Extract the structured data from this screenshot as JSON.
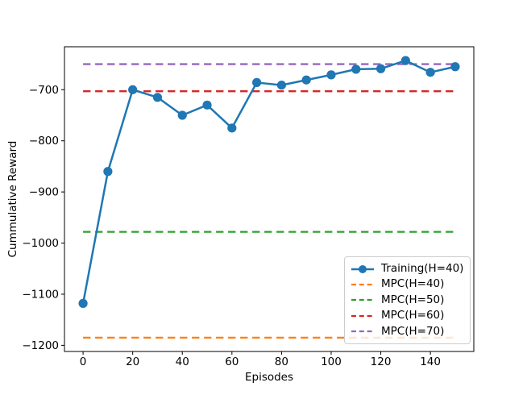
{
  "chart_data": {
    "type": "line",
    "title": "",
    "xlabel": "Episodes",
    "ylabel": "Cummulative Reward",
    "xlim": [
      -7.5,
      157.5
    ],
    "ylim": [
      -1212,
      -616
    ],
    "x_ticks": [
      0,
      20,
      40,
      60,
      80,
      100,
      120,
      140
    ],
    "y_ticks": [
      -700,
      -800,
      -900,
      -1000,
      -1100,
      -1200
    ],
    "grid": false,
    "legend_position": "lower right",
    "background_color": "#ffffff",
    "axis_color": "#000000",
    "x": [
      0,
      10,
      20,
      30,
      40,
      50,
      60,
      70,
      80,
      90,
      100,
      110,
      120,
      130,
      140,
      150
    ],
    "series": [
      {
        "name": "Training(H=40)",
        "style": "solid-marker",
        "color": "#1f77b4",
        "values": [
          -1118,
          -860,
          -700,
          -715,
          -750,
          -730,
          -775,
          -686,
          -691,
          -681,
          -671,
          -660,
          -659,
          -643,
          -666,
          -655
        ]
      },
      {
        "name": "MPC(H=40)",
        "style": "dashed",
        "color": "#ff7f0e",
        "value": -1185,
        "span": [
          0,
          150
        ]
      },
      {
        "name": "MPC(H=50)",
        "style": "dashed",
        "color": "#2ca02c",
        "value": -978,
        "span": [
          0,
          150
        ]
      },
      {
        "name": "MPC(H=60)",
        "style": "dashed",
        "color": "#d62728",
        "value": -703,
        "span": [
          0,
          150
        ]
      },
      {
        "name": "MPC(H=70)",
        "style": "dashed",
        "color": "#9467bd",
        "value": -650,
        "span": [
          0,
          150
        ]
      }
    ]
  }
}
